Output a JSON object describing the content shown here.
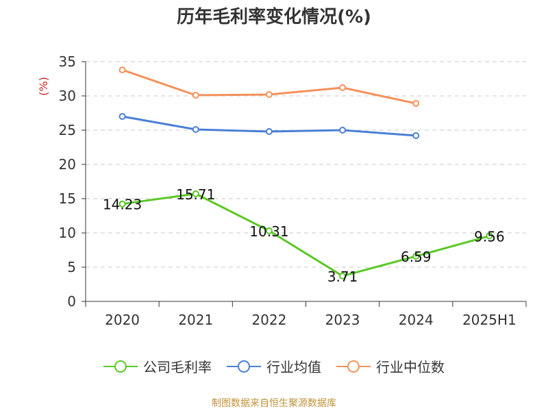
{
  "title": "历年毛利率变化情况(%)",
  "footer": "制图数据来自恒生聚源数据库",
  "chart_data": {
    "type": "line",
    "categories": [
      "2020",
      "2021",
      "2022",
      "2023",
      "2024",
      "2025H1"
    ],
    "ylabel": "(%)",
    "ylim": [
      0,
      35
    ],
    "yticks": [
      0,
      5,
      10,
      15,
      20,
      25,
      30,
      35
    ],
    "grid": true,
    "legend_position": "bottom",
    "series": [
      {
        "name": "公司毛利率",
        "color": "#5ac725",
        "values": [
          14.23,
          15.71,
          10.31,
          3.71,
          6.59,
          9.56
        ],
        "labels": [
          "14.23",
          "15.71",
          "10.31",
          "3.71",
          "6.59",
          "9.56"
        ]
      },
      {
        "name": "行业均值",
        "color": "#4a7fd6",
        "values": [
          27.0,
          25.1,
          24.8,
          25.0,
          24.2,
          null
        ]
      },
      {
        "name": "行业中位数",
        "color": "#f4915b",
        "values": [
          33.8,
          30.1,
          30.2,
          31.2,
          28.9,
          null
        ]
      }
    ]
  }
}
